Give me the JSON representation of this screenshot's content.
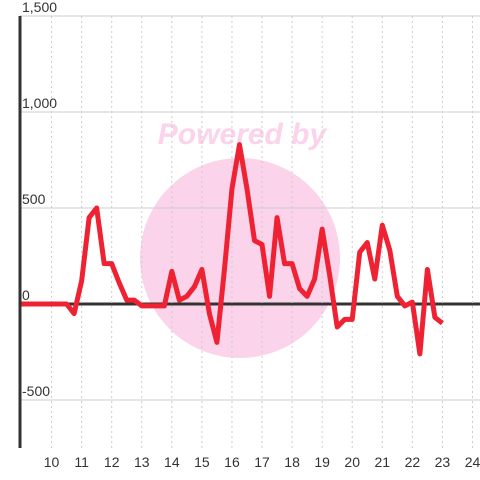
{
  "chart_data": {
    "type": "line",
    "watermark": "Powered by",
    "x": [
      9,
      9.25,
      9.5,
      9.75,
      10,
      10.25,
      10.5,
      10.75,
      11,
      11.25,
      11.5,
      11.75,
      12,
      12.25,
      12.5,
      12.75,
      13,
      13.25,
      13.5,
      13.75,
      14,
      14.25,
      14.5,
      14.75,
      15,
      15.25,
      15.5,
      15.75,
      16,
      16.25,
      16.5,
      16.75,
      17,
      17.25,
      17.5,
      17.75,
      18,
      18.25,
      18.5,
      18.75,
      19,
      19.25,
      19.5,
      19.75,
      20,
      20.25,
      20.5,
      20.75,
      21,
      21.25,
      21.5,
      21.75,
      22,
      22.25,
      22.5,
      22.75,
      23
    ],
    "series": [
      {
        "color": "#ee2233",
        "values": [
          0,
          0,
          0,
          0,
          0,
          0,
          0,
          -50,
          120,
          450,
          500,
          210,
          210,
          110,
          20,
          20,
          -10,
          -10,
          -10,
          -10,
          170,
          20,
          40,
          90,
          180,
          -50,
          -200,
          180,
          600,
          830,
          600,
          330,
          310,
          40,
          450,
          210,
          210,
          80,
          40,
          130,
          390,
          150,
          -120,
          -80,
          -80,
          270,
          320,
          130,
          410,
          280,
          40,
          -10,
          10,
          -260,
          180,
          -70,
          -100
        ]
      }
    ],
    "xlim": [
      8.95,
      24.25
    ],
    "xticks": [
      10,
      11,
      12,
      13,
      14,
      15,
      16,
      17,
      18,
      19,
      20,
      21,
      22,
      23,
      24
    ],
    "ylim": [
      -750,
      1500
    ],
    "yticks": [
      {
        "value": 1500,
        "label": "1,500"
      },
      {
        "value": 1000,
        "label": "1,000"
      },
      500,
      0,
      -500
    ],
    "grid": true
  }
}
